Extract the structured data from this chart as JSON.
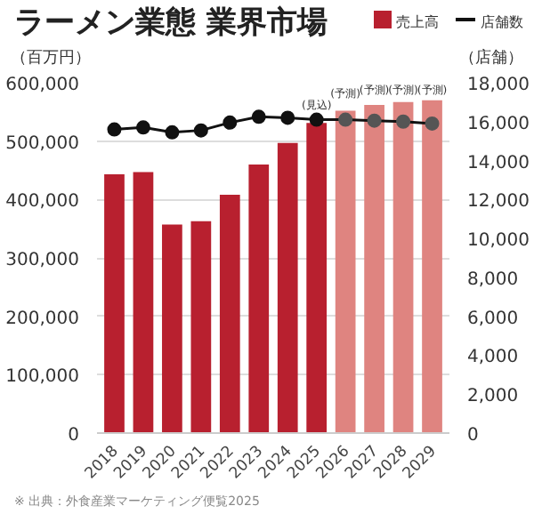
{
  "chart_data": {
    "type": "bar",
    "title": "ラーメン業態 業界市場",
    "ylabel": "（百万円）",
    "y2label": "（店舗）",
    "categories": [
      "2018",
      "2019",
      "2020",
      "2021",
      "2022",
      "2023",
      "2024",
      "2025",
      "2026",
      "2027",
      "2028",
      "2029"
    ],
    "series": [
      {
        "name": "売上高",
        "type": "bar",
        "color": "#b8202f",
        "colors": [
          "#b8202f",
          "#b8202f",
          "#b8202f",
          "#b8202f",
          "#b8202f",
          "#b8202f",
          "#b8202f",
          "#b8202f",
          "#df8480",
          "#df8480",
          "#df8480",
          "#df8480"
        ],
        "values": [
          443000,
          447000,
          357000,
          363000,
          408000,
          460000,
          497000,
          531000,
          552000,
          562000,
          567000,
          570000
        ],
        "value_labels": [
          null,
          null,
          null,
          null,
          null,
          null,
          null,
          "(見込)",
          "(予測)",
          "(予測)",
          "(予測)",
          "(予測)"
        ]
      },
      {
        "name": "店舗数",
        "type": "line",
        "axis": "y2",
        "color": "#111111",
        "colors": [
          "#111111",
          "#111111",
          "#111111",
          "#111111",
          "#111111",
          "#111111",
          "#111111",
          "#111111",
          "#555555",
          "#555555",
          "#555555",
          "#555555"
        ],
        "values": [
          15600,
          15700,
          15450,
          15550,
          15950,
          16250,
          16200,
          16100,
          16100,
          16050,
          16000,
          15900
        ]
      }
    ],
    "ylim": [
      0,
      600000
    ],
    "yticks": [
      {
        "value": 0,
        "label": "0"
      },
      {
        "value": 100000,
        "label": "100,000"
      },
      {
        "value": 200000,
        "label": "200,000"
      },
      {
        "value": 300000,
        "label": "300,000"
      },
      {
        "value": 400000,
        "label": "400,000"
      },
      {
        "value": 500000,
        "label": "500,000"
      },
      {
        "value": 600000,
        "label": "600,000"
      }
    ],
    "y2lim": [
      0,
      18000
    ],
    "y2ticks": [
      {
        "value": 0,
        "label": "0"
      },
      {
        "value": 2000,
        "label": "2,000"
      },
      {
        "value": 4000,
        "label": "4,000"
      },
      {
        "value": 6000,
        "label": "6,000"
      },
      {
        "value": 8000,
        "label": "8,000"
      },
      {
        "value": 10000,
        "label": "10,000"
      },
      {
        "value": 12000,
        "label": "12,000"
      },
      {
        "value": 14000,
        "label": "14,000"
      },
      {
        "value": 16000,
        "label": "16,000"
      },
      {
        "value": 18000,
        "label": "18,000"
      }
    ],
    "grid": "y",
    "legend": "top right",
    "marker": "circle",
    "line_style": "solid",
    "annotations": [
      "※ 出典：外食産業マーケティング便覧2025"
    ]
  }
}
